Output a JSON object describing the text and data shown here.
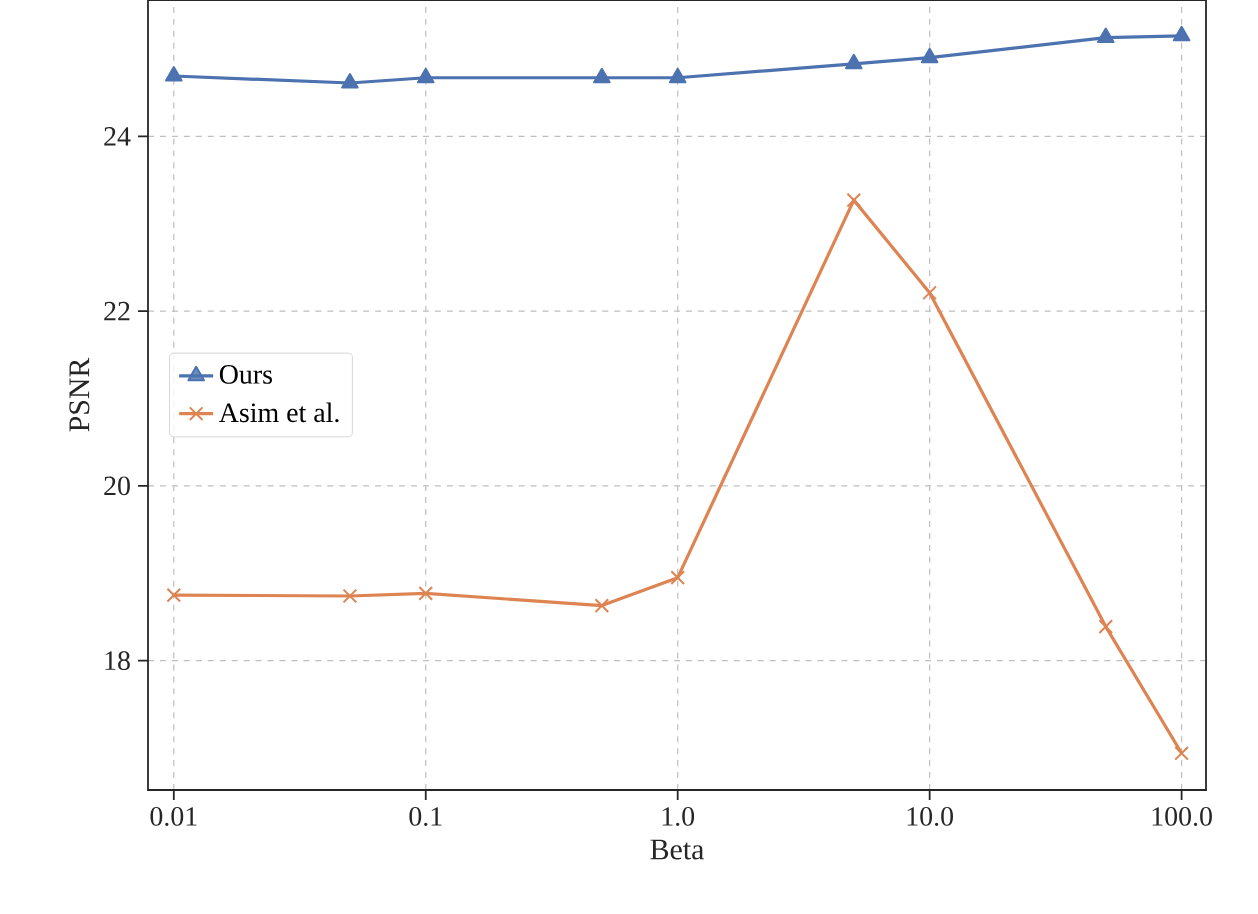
{
  "chart_data": {
    "type": "line",
    "xlabel": "Beta",
    "ylabel": "PSNR",
    "x": [
      0.01,
      0.05,
      0.1,
      0.5,
      1,
      5,
      10,
      50,
      100
    ],
    "series": [
      {
        "name": "Ours",
        "color": "#4c72b0",
        "marker": "triangle",
        "values": [
          24.69,
          24.61,
          24.67,
          24.67,
          24.67,
          24.83,
          24.9,
          25.13,
          25.15
        ]
      },
      {
        "name": "Asim et al.",
        "color": "#dd8452",
        "marker": "cross",
        "values": [
          18.75,
          18.74,
          18.77,
          18.63,
          18.95,
          23.27,
          22.21,
          18.39,
          16.94
        ]
      }
    ],
    "log": "x",
    "xlim": [
      0.0079,
      125
    ],
    "ylim": [
      16.52,
      25.56
    ],
    "xticks": [
      0.01,
      0.1,
      {
        "value": 1,
        "label": "1.0"
      },
      {
        "value": 10,
        "label": "10.0"
      },
      {
        "value": 100,
        "label": "100.0"
      }
    ],
    "yticks": [
      18,
      20,
      22,
      24
    ],
    "grid": true,
    "legend": "left",
    "line_style": "solid"
  }
}
